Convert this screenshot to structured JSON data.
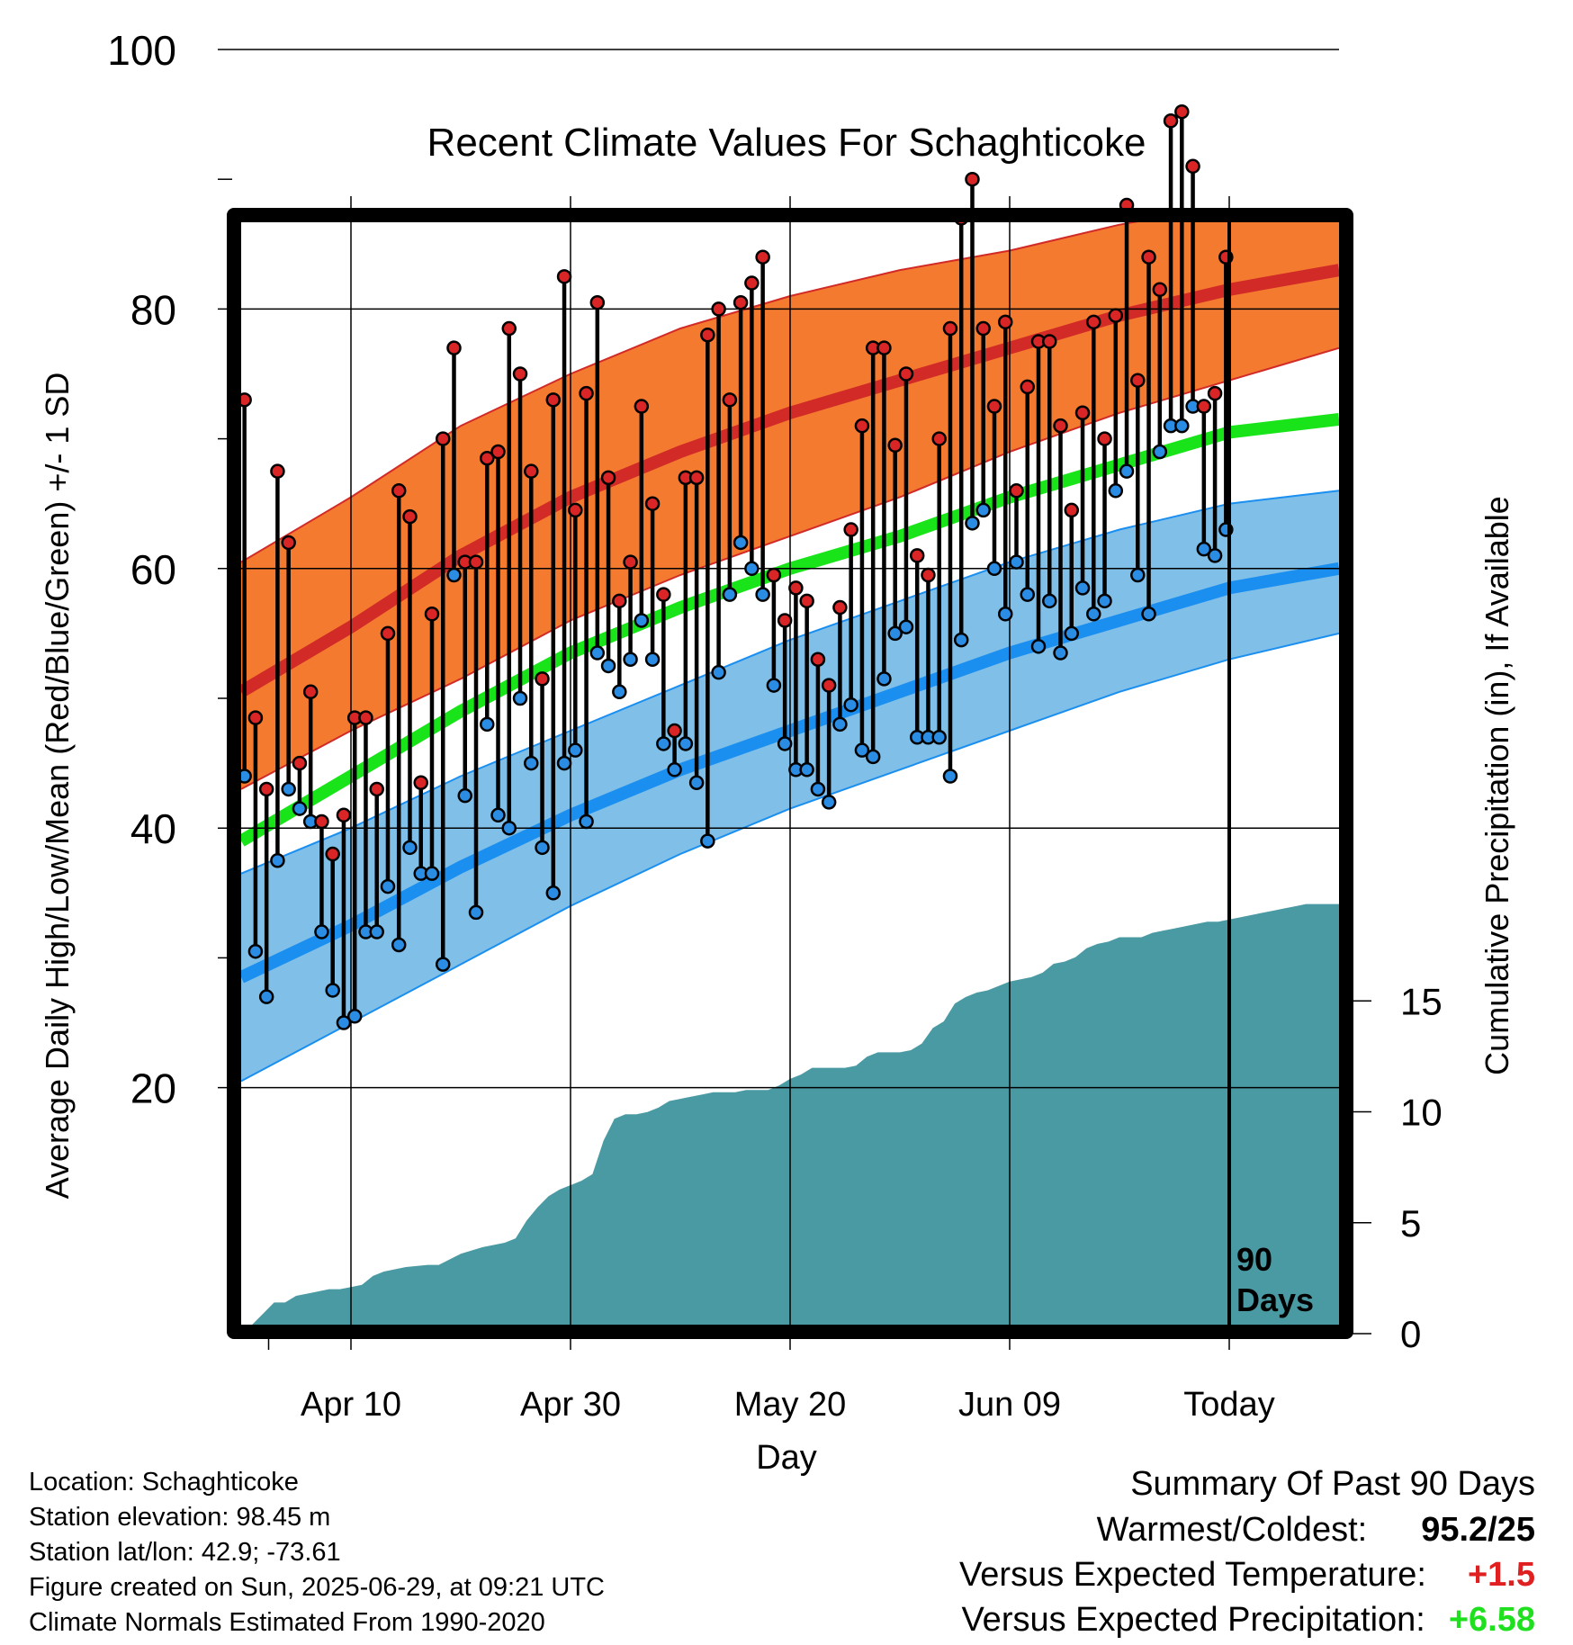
{
  "chart_data": {
    "type": "line",
    "title": "Recent Climate Values For Schaghticoke",
    "xlabel": "Day",
    "ylabel": "Average Daily High/Low/Mean (Red/Blue/Green) +/- 1 SD",
    "y2label": "Cumulative Precipitation (in), If Available",
    "xlim": [
      -10,
      90
    ],
    "ylim": [
      15,
      100
    ],
    "y2lim": [
      0,
      34
    ],
    "x_ticks": [
      {
        "x": 0,
        "label": "Apr 10"
      },
      {
        "x": 20,
        "label": "Apr 30"
      },
      {
        "x": 40,
        "label": "May 20"
      },
      {
        "x": 60,
        "label": "Jun 09"
      },
      {
        "x": 80,
        "label": "Today"
      }
    ],
    "y_ticks": [
      20,
      40,
      60,
      80,
      100
    ],
    "y2_ticks": [
      0,
      5,
      10,
      15
    ],
    "today_marker": {
      "x": 80,
      "label_line1": "90",
      "label_line2": "Days"
    },
    "normal_high": {
      "x": [
        -10,
        0,
        10,
        20,
        30,
        40,
        50,
        60,
        70,
        80,
        90
      ],
      "mean": [
        50.5,
        55.5,
        61.0,
        65.5,
        69.0,
        72.0,
        74.5,
        77.0,
        79.5,
        81.5,
        83.0
      ],
      "upper": [
        60.5,
        65.5,
        71.0,
        75.0,
        78.5,
        81.0,
        83.0,
        84.5,
        86.5,
        88.0,
        89.0
      ],
      "lower": [
        43.0,
        47.5,
        51.5,
        56.0,
        59.5,
        62.5,
        65.5,
        69.0,
        72.0,
        74.5,
        77.0
      ]
    },
    "normal_low": {
      "x": [
        -10,
        0,
        10,
        20,
        30,
        40,
        50,
        60,
        70,
        80,
        90
      ],
      "mean": [
        28.5,
        32.5,
        37.0,
        41.0,
        44.5,
        47.5,
        50.5,
        53.5,
        56.0,
        58.5,
        60.0
      ],
      "upper": [
        36.5,
        40.0,
        44.0,
        47.5,
        51.0,
        54.5,
        57.5,
        60.5,
        63.0,
        65.0,
        66.0
      ],
      "lower": [
        20.5,
        25.0,
        29.5,
        34.0,
        38.0,
        41.5,
        44.5,
        47.5,
        50.5,
        53.0,
        55.0
      ]
    },
    "normal_mean": {
      "x": [
        -10,
        0,
        10,
        20,
        30,
        40,
        50,
        60,
        70,
        80,
        90
      ],
      "values": [
        39.0,
        44.0,
        49.0,
        53.5,
        57.0,
        60.0,
        62.5,
        65.5,
        68.0,
        70.5,
        71.5
      ]
    },
    "daily_high": [
      73,
      48.5,
      43,
      67.5,
      62,
      45,
      50.5,
      40.5,
      38,
      41,
      48.5,
      48.5,
      43,
      55,
      66,
      64,
      43.5,
      56.5,
      70,
      77,
      60.5,
      60.5,
      68.5,
      69,
      78.5,
      75,
      67.5,
      51.5,
      73,
      82.5,
      64.5,
      73.5,
      80.5,
      67,
      57.5,
      60.5,
      72.5,
      65,
      58,
      47.5,
      67,
      67,
      78,
      80,
      73,
      80.5,
      82,
      84,
      59.5,
      56,
      58.5,
      57.5,
      53,
      51,
      57,
      63,
      71,
      77,
      77,
      69.5,
      75,
      61,
      59.5,
      70,
      78.5,
      87,
      90,
      78.5,
      72.5,
      79,
      66,
      74,
      77.5,
      77.5,
      71,
      64.5,
      72,
      79,
      70,
      79.5,
      88,
      74.5,
      84,
      81.5,
      94.5,
      95.2,
      91,
      72.5,
      73.5,
      84
    ],
    "daily_low": [
      44,
      30.5,
      27,
      37.5,
      43,
      41.5,
      40.5,
      32,
      27.5,
      25,
      25.5,
      32,
      32,
      35.5,
      31,
      38.5,
      36.5,
      36.5,
      29.5,
      59.5,
      42.5,
      33.5,
      48,
      41,
      40,
      50,
      45,
      38.5,
      35,
      45,
      46,
      40.5,
      53.5,
      52.5,
      50.5,
      53,
      56,
      53,
      46.5,
      44.5,
      46.5,
      43.5,
      39,
      52,
      58,
      62,
      60,
      58,
      51,
      46.5,
      44.5,
      44.5,
      43,
      42,
      48,
      49.5,
      46,
      45.5,
      51.5,
      55,
      55.5,
      47,
      47,
      47,
      44,
      54.5,
      63.5,
      64.5,
      60,
      56.5,
      60.5,
      58,
      54,
      57.5,
      53.5,
      55,
      58.5,
      56.5,
      57.5,
      66,
      67.5,
      59.5,
      56.5,
      69,
      71,
      71,
      72.5,
      61.5,
      61,
      63
    ],
    "cumulative_precip": {
      "x": [
        -10,
        -9,
        -8,
        -7,
        -6,
        -5,
        -4,
        -3,
        -2,
        -1,
        0,
        1,
        2,
        3,
        5,
        7,
        8,
        10,
        12,
        14,
        15,
        16,
        17,
        18,
        19,
        20,
        21,
        22,
        23,
        24,
        25,
        26,
        27,
        28,
        29,
        30,
        31,
        32,
        33,
        34,
        35,
        36,
        37,
        38,
        39,
        40,
        41,
        42,
        43,
        44,
        45,
        46,
        47,
        48,
        49,
        50,
        51,
        52,
        53,
        54,
        55,
        56,
        57,
        58,
        59,
        60,
        61,
        62,
        63,
        64,
        65,
        66,
        67,
        68,
        69,
        70,
        71,
        72,
        73,
        74,
        75,
        76,
        77,
        78,
        79,
        80,
        81,
        82,
        83,
        84,
        85,
        86,
        87,
        88,
        89,
        90
      ],
      "values": [
        0,
        0,
        0.5,
        1.0,
        1.0,
        1.3,
        1.4,
        1.5,
        1.6,
        1.6,
        1.7,
        1.8,
        2.2,
        2.4,
        2.6,
        2.7,
        2.7,
        3.2,
        3.5,
        3.7,
        3.9,
        4.7,
        5.3,
        5.8,
        6.1,
        6.3,
        6.5,
        6.8,
        8.3,
        9.3,
        9.5,
        9.5,
        9.6,
        9.8,
        10.1,
        10.2,
        10.3,
        10.4,
        10.5,
        10.5,
        10.5,
        10.6,
        10.6,
        10.6,
        10.8,
        11.1,
        11.3,
        11.6,
        11.6,
        11.6,
        11.6,
        11.7,
        12.1,
        12.3,
        12.3,
        12.3,
        12.4,
        12.7,
        13.4,
        13.7,
        14.5,
        14.8,
        15.0,
        15.1,
        15.3,
        15.5,
        15.6,
        15.7,
        15.9,
        16.3,
        16.4,
        16.6,
        17.0,
        17.2,
        17.3,
        17.5,
        17.5,
        17.5,
        17.7,
        17.8,
        17.9,
        18.0,
        18.1,
        18.2,
        18.2,
        18.3,
        18.4,
        18.5,
        18.6,
        18.7,
        18.8,
        18.9,
        19.0,
        19.0,
        19.0,
        19.0
      ]
    },
    "grid": true,
    "colors": {
      "high_band": "#f47a30",
      "high_line": "#d12a27",
      "low_band": "#7fbfe8",
      "low_line": "#1a8ff0",
      "mean_line": "#19e319",
      "precip": "#4a9aa3",
      "high_dot": "#d92525",
      "low_dot": "#2b8ce3"
    }
  },
  "info": {
    "location": "Location: Schaghticoke",
    "elevation": "Station elevation: 98.45 m",
    "latlon": "Station lat/lon: 42.9; -73.61",
    "created": "Figure created on Sun, 2025-06-29, at 09:21 UTC",
    "normals": "Climate Normals Estimated From 1990-2020"
  },
  "summary": {
    "title": "Summary Of Past 90 Days",
    "extremes_label": "Warmest/Coldest:",
    "extremes_value": "95.2/25",
    "temp_label": "Versus Expected Temperature:",
    "temp_value": "+1.5",
    "temp_color": "#e02020",
    "precip_label": "Versus Expected Precipitation:",
    "precip_value": "+6.58",
    "precip_color": "#1fe01f"
  }
}
